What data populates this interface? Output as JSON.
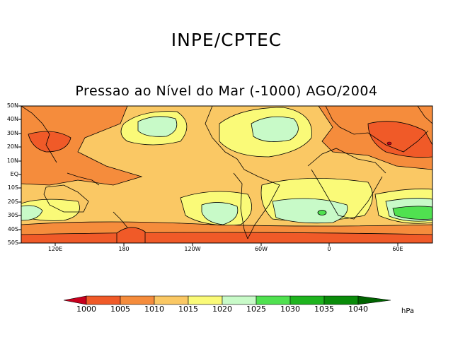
{
  "header": {
    "title": "INPE/CPTEC",
    "subtitle": "Pressao ao Nível do Mar (-1000) AGO/2004"
  },
  "map": {
    "lat_labels": [
      "50N",
      "40N",
      "30N",
      "20N",
      "10N",
      "EQ",
      "10S",
      "20S",
      "30S",
      "40S",
      "50S"
    ],
    "lon_labels": [
      "120E",
      "180",
      "120W",
      "60W",
      "0",
      "60E"
    ]
  },
  "colorbar": {
    "levels": [
      "1000",
      "1005",
      "1010",
      "1015",
      "1020",
      "1025",
      "1030",
      "1035",
      "1040"
    ],
    "colors": [
      "#c8001e",
      "#f05a28",
      "#f58c3c",
      "#fac864",
      "#fafa78",
      "#c8fac8",
      "#50e150",
      "#1eb41e",
      "#0a8c0a",
      "#006400"
    ],
    "unit": "hPa"
  }
}
